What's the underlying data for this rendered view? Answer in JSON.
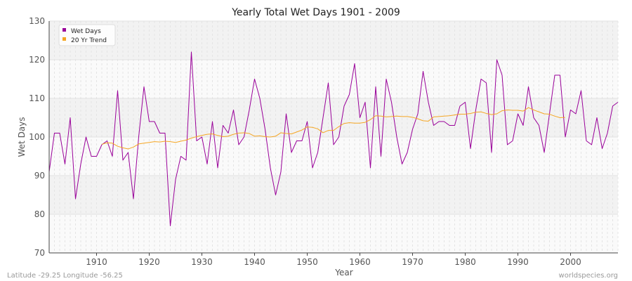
{
  "chart_data": {
    "type": "line",
    "title": "Yearly Total Wet Days 1901 - 2009",
    "xlabel": "Year",
    "ylabel": "Wet Days",
    "xlim": [
      1901,
      2009
    ],
    "ylim": [
      70,
      130
    ],
    "x_ticks": [
      1910,
      1920,
      1930,
      1940,
      1950,
      1960,
      1970,
      1980,
      1990,
      2000
    ],
    "y_ticks": [
      70,
      80,
      90,
      100,
      110,
      120,
      130
    ],
    "grid": true,
    "legend_position": "top-left",
    "series": [
      {
        "name": "Wet Days",
        "color": "#990099",
        "x_start": 1901,
        "values": [
          91,
          101,
          101,
          93,
          105,
          84,
          93,
          100,
          95,
          95,
          98,
          99,
          95,
          112,
          94,
          96,
          84,
          100,
          113,
          104,
          104,
          101,
          101,
          77,
          89,
          95,
          94,
          122,
          99,
          100,
          93,
          104,
          92,
          103,
          101,
          107,
          98,
          100,
          107,
          115,
          110,
          102,
          92,
          85,
          91,
          106,
          96,
          99,
          99,
          104,
          92,
          96,
          105,
          114,
          98,
          100,
          108,
          111,
          119,
          105,
          109,
          92,
          113,
          95,
          115,
          109,
          100,
          93,
          96,
          102,
          106,
          117,
          109,
          103,
          104,
          104,
          103,
          103,
          108,
          109,
          97,
          107,
          115,
          114,
          96,
          120,
          116,
          98,
          99,
          106,
          103,
          113,
          105,
          103,
          96,
          106,
          116,
          116,
          100,
          107,
          106,
          112,
          99,
          98,
          105,
          97,
          101,
          108,
          109
        ]
      },
      {
        "name": "20 Yr Trend",
        "color": "#f5a623",
        "x_start": 1911,
        "values": [
          98.1,
          98.5,
          98.4,
          97.6,
          97.2,
          96.9,
          97.4,
          98.2,
          98.4,
          98.6,
          98.8,
          98.7,
          98.9,
          98.8,
          98.6,
          98.9,
          99.2,
          99.7,
          100.1,
          100.4,
          100.7,
          100.8,
          100.4,
          100.1,
          100.2,
          100.7,
          101.0,
          101.1,
          100.9,
          100.2,
          100.3,
          100.1,
          100.0,
          100.2,
          101.1,
          100.9,
          100.8,
          101.3,
          101.8,
          102.6,
          102.5,
          102.1,
          101.1,
          101.7,
          101.7,
          102.7,
          103.5,
          103.7,
          103.6,
          103.6,
          103.8,
          104.5,
          105.5,
          105.4,
          105.2,
          105.3,
          105.4,
          105.3,
          105.3,
          105.1,
          104.7,
          104.2,
          104.1,
          105.2,
          105.3,
          105.4,
          105.5,
          105.7,
          105.9,
          105.9,
          106.1,
          106.4,
          106.5,
          106.1,
          105.8,
          106.0,
          106.8,
          107.0,
          106.9,
          106.9,
          106.7,
          107.6,
          107.0,
          106.5,
          106.0,
          105.9,
          105.4,
          105.0,
          105.1
        ]
      }
    ]
  },
  "footer": {
    "left": "Latitude -29.25 Longitude -56.25",
    "right": "worldspecies.org"
  }
}
